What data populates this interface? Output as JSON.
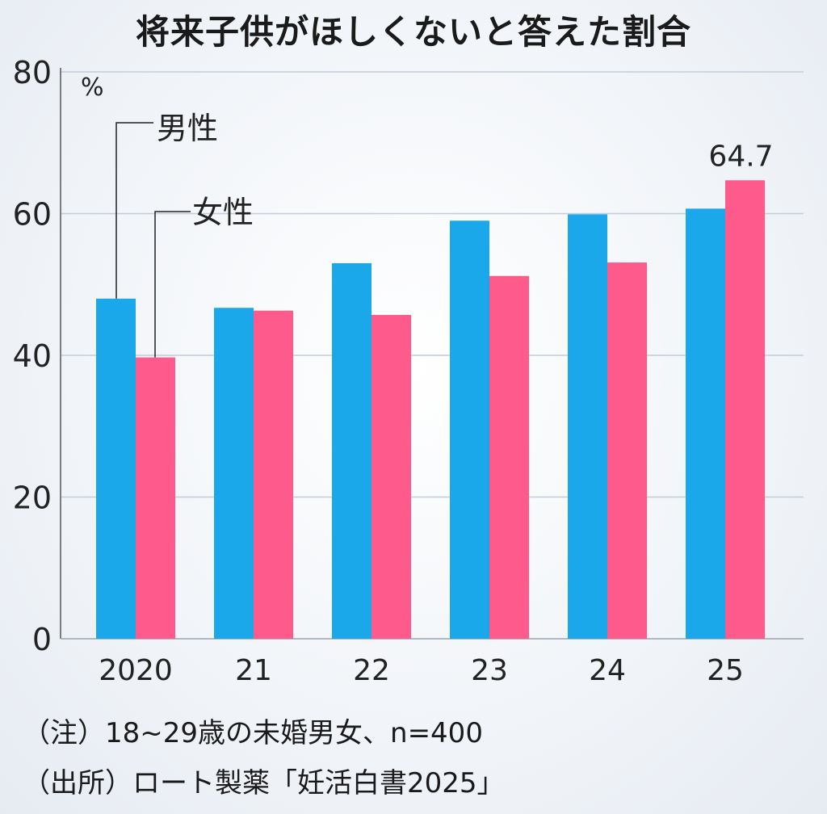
{
  "chart_data": {
    "type": "bar",
    "title": "将来子供がほしくないと答えた割合",
    "ylabel": "%",
    "ylim": [
      0,
      80
    ],
    "yticks": [
      0,
      20,
      40,
      60,
      80
    ],
    "grid": true,
    "categories": [
      "2020",
      "21",
      "22",
      "23",
      "24",
      "25"
    ],
    "series": [
      {
        "name": "男性",
        "color": "#1aa8ea",
        "values": [
          48.0,
          46.7,
          53.0,
          59.0,
          59.9,
          60.7
        ]
      },
      {
        "name": "女性",
        "color": "#ff5a8c",
        "values": [
          39.7,
          46.3,
          45.7,
          51.2,
          53.1,
          64.7
        ]
      }
    ],
    "data_labels": [
      {
        "series": "女性",
        "category": "25",
        "text": "64.7"
      }
    ],
    "legend": "inline-callouts"
  },
  "notes": {
    "note": "（注）18~29歳の未婚男女、n=400",
    "source": "（出所）ロート製薬「妊活白書2025」"
  }
}
